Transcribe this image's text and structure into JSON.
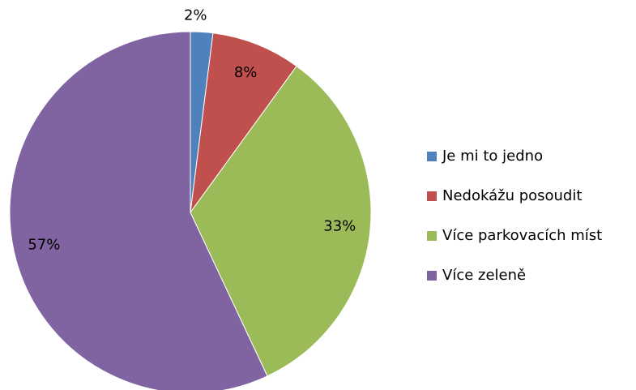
{
  "chart_data": {
    "type": "pie",
    "categories": [
      "Je mi to jedno",
      "Nedokážu posoudit",
      "Více parkovacích míst",
      "Více zeleně"
    ],
    "values": [
      2,
      8,
      33,
      57
    ],
    "value_labels": [
      "2%",
      "8%",
      "33%",
      "57%"
    ],
    "colors": [
      "#4f81bd",
      "#c0504d",
      "#9bbb59",
      "#8064a2"
    ],
    "legend": "right"
  }
}
